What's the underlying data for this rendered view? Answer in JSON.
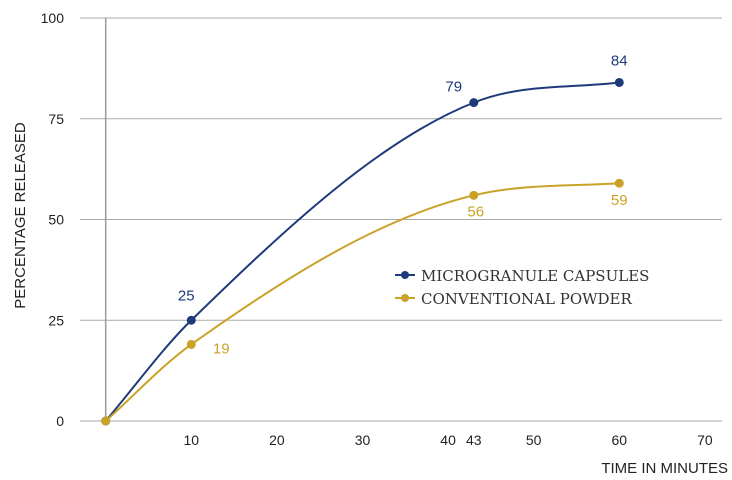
{
  "chart_data": {
    "type": "line",
    "xlabel": "TIME IN MINUTES",
    "ylabel": "PERCENTAGE RELEASED",
    "xlim": [
      -3,
      72
    ],
    "ylim": [
      0,
      100
    ],
    "x_ticks": [
      10,
      20,
      30,
      40,
      43,
      50,
      60,
      70
    ],
    "y_ticks": [
      0,
      25,
      50,
      75,
      100
    ],
    "grid": "horizontal",
    "legend_position": "center-right",
    "series": [
      {
        "name": "MICROGRANULE CAPSULES",
        "color": "#1f3a7a",
        "points": [
          {
            "x": 0,
            "y": 0,
            "label": ""
          },
          {
            "x": 10,
            "y": 25,
            "label": "25"
          },
          {
            "x": 43,
            "y": 79,
            "label": "79"
          },
          {
            "x": 60,
            "y": 84,
            "label": "84"
          }
        ]
      },
      {
        "name": "CONVENTIONAL POWDER",
        "color": "#c9a227",
        "points": [
          {
            "x": 0,
            "y": 0,
            "label": ""
          },
          {
            "x": 10,
            "y": 19,
            "label": "19"
          },
          {
            "x": 43,
            "y": 56,
            "label": "56"
          },
          {
            "x": 60,
            "y": 59,
            "label": "59"
          }
        ]
      }
    ]
  }
}
